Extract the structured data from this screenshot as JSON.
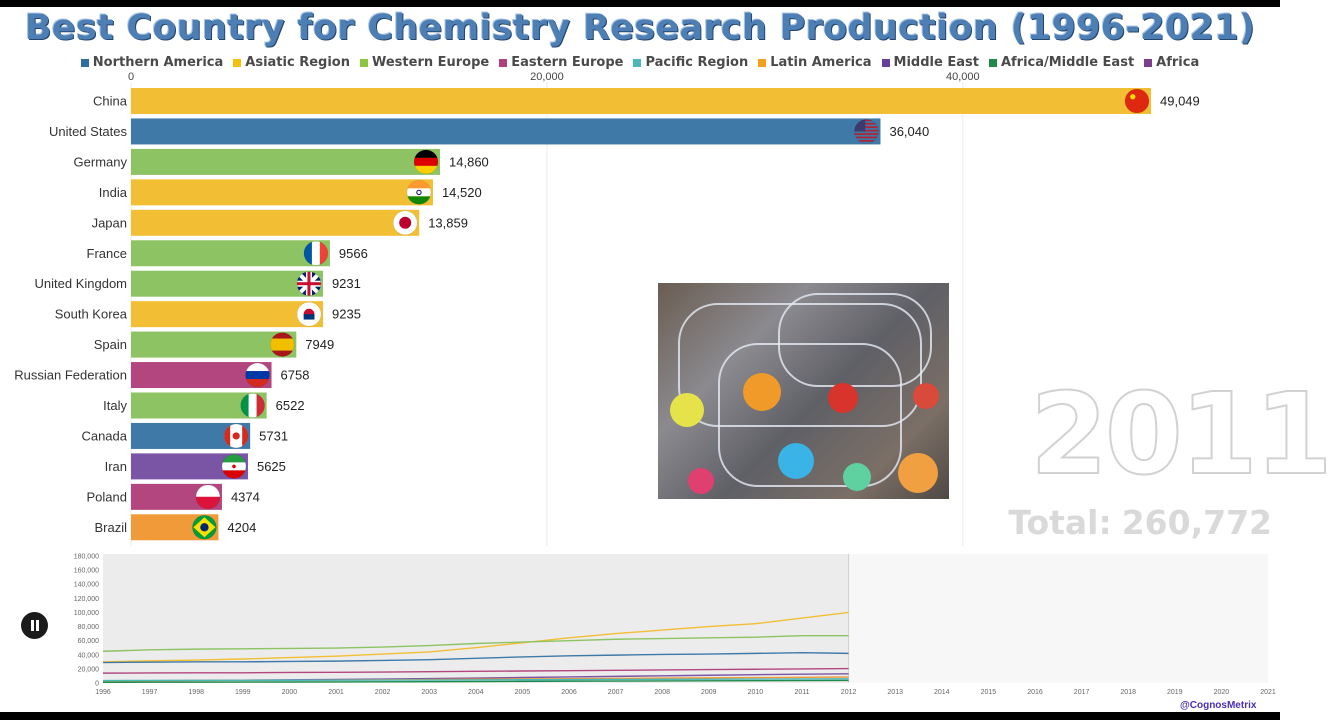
{
  "title": "Best Country for Chemistry Research Production (1996-2021)",
  "legend": [
    {
      "label": "Northern America",
      "color": "#2e6d9e"
    },
    {
      "label": "Asiatic Region",
      "color": "#f4c20d"
    },
    {
      "label": "Western Europe",
      "color": "#8cc63f"
    },
    {
      "label": "Eastern Europe",
      "color": "#b0417e"
    },
    {
      "label": "Pacific Region",
      "color": "#4ab8b8"
    },
    {
      "label": "Latin America",
      "color": "#f4a01a"
    },
    {
      "label": "Middle East",
      "color": "#6a3d9a"
    },
    {
      "label": "Africa/Middle East",
      "color": "#1f8a4c"
    },
    {
      "label": "Africa",
      "color": "#7b3f8c"
    }
  ],
  "year": "2011",
  "total_prefix": "Total:",
  "total_value": "260,772",
  "credit": "@CognosMetrix",
  "chart_data": [
    {
      "type": "bar",
      "orientation": "horizontal",
      "title": "Best Country for Chemistry Research Production (1996-2021)",
      "xlim": [
        0,
        49049
      ],
      "ticks": [
        0,
        20000,
        40000
      ],
      "tick_labels": [
        "0",
        "20,000",
        "40,000"
      ],
      "categories": [
        "China",
        "United States",
        "Germany",
        "India",
        "Japan",
        "France",
        "United Kingdom",
        "South Korea",
        "Spain",
        "Russian Federation",
        "Italy",
        "Canada",
        "Iran",
        "Poland",
        "Brazil"
      ],
      "values": [
        49049,
        36040,
        14860,
        14520,
        13859,
        9566,
        9231,
        9235,
        7949,
        6758,
        6522,
        5731,
        5625,
        4374,
        4204
      ],
      "value_labels": [
        "49,049",
        "36,040",
        "14,860",
        "14,520",
        "13,859",
        "9566",
        "9231",
        "9235",
        "7949",
        "6758",
        "6522",
        "5731",
        "5625",
        "4374",
        "4204"
      ],
      "regions": [
        "Asiatic Region",
        "Northern America",
        "Western Europe",
        "Asiatic Region",
        "Asiatic Region",
        "Western Europe",
        "Western Europe",
        "Asiatic Region",
        "Western Europe",
        "Eastern Europe",
        "Western Europe",
        "Northern America",
        "Middle East",
        "Eastern Europe",
        "Latin America"
      ],
      "colors": [
        "#f2be33",
        "#3e79a8",
        "#8dc363",
        "#f2be33",
        "#f2be33",
        "#8dc363",
        "#8dc363",
        "#f2be33",
        "#8dc363",
        "#b3467f",
        "#8dc363",
        "#3e79a8",
        "#7a55a6",
        "#b3467f",
        "#f09a3a"
      ],
      "flags": [
        "china-flag-icon",
        "usa-flag-icon",
        "germany-flag-icon",
        "india-flag-icon",
        "japan-flag-icon",
        "france-flag-icon",
        "uk-flag-icon",
        "south-korea-flag-icon",
        "spain-flag-icon",
        "russia-flag-icon",
        "italy-flag-icon",
        "canada-flag-icon",
        "iran-flag-icon",
        "poland-flag-icon",
        "brazil-flag-icon"
      ],
      "grid": true
    },
    {
      "type": "line",
      "x": [
        1996,
        1997,
        1998,
        1999,
        2000,
        2001,
        2002,
        2003,
        2004,
        2005,
        2006,
        2007,
        2008,
        2009,
        2010,
        2011,
        2012
      ],
      "xlim": [
        1996,
        2021
      ],
      "x_ticks": [
        1996,
        1997,
        1998,
        1999,
        2000,
        2001,
        2002,
        2003,
        2004,
        2005,
        2006,
        2007,
        2008,
        2009,
        2010,
        2011,
        2012,
        2013,
        2014,
        2015,
        2016,
        2017,
        2018,
        2019,
        2020,
        2021
      ],
      "ylim": [
        0,
        180000
      ],
      "y_ticks": [
        0,
        20000,
        40000,
        60000,
        80000,
        100000,
        120000,
        140000,
        160000,
        180000
      ],
      "y_tick_labels": [
        "0",
        "20,000",
        "40,000",
        "60,000",
        "80,000",
        "100,000",
        "120,000",
        "140,000",
        "160,000",
        "180,000"
      ],
      "current_x": 2012,
      "series": [
        {
          "color": "#f2be33",
          "values": [
            30000,
            31500,
            32500,
            34000,
            36000,
            38000,
            41000,
            44000,
            50000,
            57000,
            64000,
            70000,
            75000,
            80000,
            84000,
            92000,
            100000
          ]
        },
        {
          "color": "#8dc363",
          "values": [
            45000,
            47000,
            48000,
            48500,
            49000,
            49500,
            51000,
            53000,
            56000,
            58000,
            60000,
            62000,
            63000,
            64000,
            65000,
            67000,
            67000
          ]
        },
        {
          "color": "#3e79a8",
          "values": [
            29000,
            29500,
            30000,
            30000,
            30500,
            31000,
            32000,
            33000,
            35000,
            37000,
            38500,
            39500,
            40500,
            41000,
            42000,
            43000,
            42000
          ]
        },
        {
          "color": "#b3467f",
          "values": [
            14000,
            14200,
            14500,
            14500,
            15000,
            15200,
            15500,
            16000,
            16500,
            17000,
            17500,
            18000,
            18500,
            19000,
            19500,
            20000,
            20500
          ]
        },
        {
          "color": "#7a55a6",
          "values": [
            3000,
            3300,
            3600,
            4000,
            4500,
            5000,
            5600,
            6200,
            7000,
            7800,
            8600,
            9400,
            10200,
            11000,
            11800,
            12500,
            13000
          ]
        },
        {
          "color": "#f09a3a",
          "values": [
            3000,
            3200,
            3400,
            3600,
            3900,
            4200,
            4500,
            4900,
            5300,
            5700,
            6100,
            6500,
            6900,
            7300,
            7700,
            8100,
            8500
          ]
        },
        {
          "color": "#4ab8b8",
          "values": [
            3500,
            3600,
            3700,
            3800,
            3900,
            4000,
            4100,
            4200,
            4400,
            4600,
            4800,
            5000,
            5200,
            5400,
            5600,
            5800,
            6000
          ]
        },
        {
          "color": "#1f8a4c",
          "values": [
            1000,
            1100,
            1200,
            1300,
            1400,
            1500,
            1700,
            1900,
            2100,
            2300,
            2500,
            2700,
            2900,
            3100,
            3300,
            3500,
            3700
          ]
        }
      ]
    }
  ]
}
